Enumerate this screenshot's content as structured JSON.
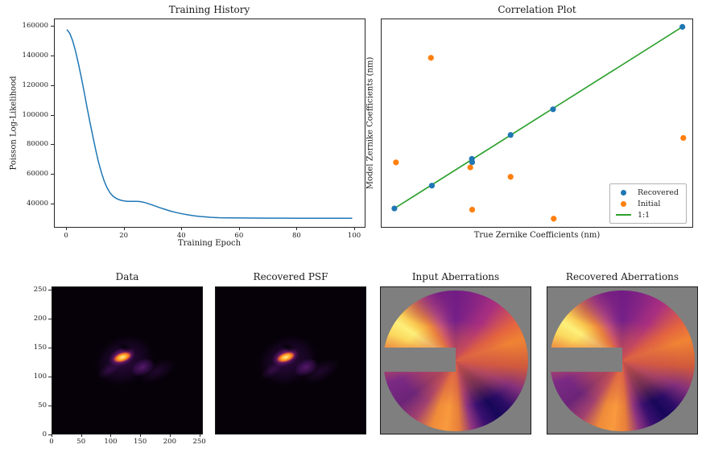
{
  "colors": {
    "recovered_blue": "#1f77b4",
    "initial_orange": "#ff7f0e",
    "identity_green": "#2ca02c",
    "curve_blue": "#1f77b4",
    "panel_gray": "#7f7f7f",
    "psf_background": "#060109"
  },
  "chart_data": [
    {
      "id": "training_history",
      "type": "line",
      "title": "Training History",
      "xlabel": "Training Epoch",
      "ylabel": "Poisson Log-Likelihood",
      "xticks": [
        0,
        20,
        40,
        60,
        80,
        100
      ],
      "yticks": [
        40000,
        60000,
        80000,
        100000,
        120000,
        140000,
        160000
      ],
      "xlim": [
        -4.2,
        103.9
      ],
      "ylim": [
        23750,
        164900
      ],
      "grid": false,
      "series": [
        {
          "name": "poisson-log-likelihood",
          "color": "#1f77b4",
          "points": [
            [
              0,
              158000
            ],
            [
              1,
              155500
            ],
            [
              2,
              150500
            ],
            [
              3,
              143500
            ],
            [
              4,
              135000
            ],
            [
              5,
              126000
            ],
            [
              6,
              116000
            ],
            [
              7,
              105500
            ],
            [
              8,
              95500
            ],
            [
              9,
              86000
            ],
            [
              10,
              77000
            ],
            [
              11,
              68500
            ],
            [
              12,
              61500
            ],
            [
              13,
              55500
            ],
            [
              14,
              51000
            ],
            [
              15,
              47800
            ],
            [
              16,
              45600
            ],
            [
              17,
              44200
            ],
            [
              18,
              43300
            ],
            [
              19,
              42700
            ],
            [
              20,
              42300
            ],
            [
              21,
              42100
            ],
            [
              22,
              42050
            ],
            [
              23,
              42100
            ],
            [
              24,
              42100
            ],
            [
              25,
              42000
            ],
            [
              26,
              41700
            ],
            [
              27,
              41300
            ],
            [
              28,
              40700
            ],
            [
              30,
              39400
            ],
            [
              32,
              38000
            ],
            [
              34,
              36700
            ],
            [
              36,
              35500
            ],
            [
              38,
              34500
            ],
            [
              40,
              33700
            ],
            [
              42,
              33000
            ],
            [
              44,
              32400
            ],
            [
              46,
              31900
            ],
            [
              48,
              31600
            ],
            [
              50,
              31300
            ],
            [
              53,
              31050
            ],
            [
              56,
              30950
            ],
            [
              60,
              30850
            ],
            [
              65,
              30800
            ],
            [
              70,
              30750
            ],
            [
              75,
              30750
            ],
            [
              80,
              30700
            ],
            [
              85,
              30700
            ],
            [
              90,
              30700
            ],
            [
              95,
              30700
            ],
            [
              99,
              30700
            ]
          ]
        }
      ]
    },
    {
      "id": "correlation_plot",
      "type": "scatter",
      "title": "Correlation Plot",
      "xlabel": "True Zernike Coefficients (nm)",
      "ylabel": "Model Zernike Coefficients (nm)",
      "axis_tick_labels": "none shown",
      "units_note": "point coordinates given as fraction of axes (0-1), since axes carry no numeric ticks",
      "series": [
        {
          "name": "Recovered",
          "color": "#1f77b4",
          "points": [
            [
              0.041,
              0.096
            ],
            [
              0.161,
              0.205
            ],
            [
              0.289,
              0.333
            ],
            [
              0.29,
              0.317
            ],
            [
              0.413,
              0.447
            ],
            [
              0.549,
              0.57
            ],
            [
              0.963,
              0.964
            ]
          ]
        },
        {
          "name": "Initial",
          "color": "#ff7f0e",
          "points": [
            [
              0.046,
              0.316
            ],
            [
              0.158,
              0.816
            ],
            [
              0.284,
              0.292
            ],
            [
              0.29,
              0.09
            ],
            [
              0.413,
              0.247
            ],
            [
              0.551,
              0.047
            ],
            [
              0.966,
              0.433
            ]
          ]
        }
      ],
      "identity_line": {
        "name": "1:1",
        "color": "#2ca02c",
        "from": [
          0.041,
          0.096
        ],
        "to": [
          0.963,
          0.964
        ]
      },
      "legend": {
        "position": "lower right",
        "entries": [
          "Recovered",
          "Initial",
          "1:1"
        ]
      }
    },
    {
      "id": "data_image",
      "type": "heatmap",
      "title": "Data",
      "xticks": [
        0,
        50,
        100,
        150,
        200,
        250
      ],
      "yticks": [
        0,
        50,
        100,
        150,
        200,
        250
      ],
      "extent": [
        0,
        256,
        0,
        256
      ],
      "colormap": "inferno-like (black background, yellow-orange PSF core, purple halo)",
      "psf_core_xy": [
        120,
        132
      ]
    },
    {
      "id": "recovered_psf_image",
      "type": "heatmap",
      "title": "Recovered PSF",
      "axis_tick_labels": "none shown",
      "colormap": "inferno-like (black background, yellow-orange PSF core, purple halo)",
      "psf_core_xy": [
        120,
        132
      ]
    },
    {
      "id": "input_aberrations_image",
      "type": "heatmap",
      "title": "Input Aberrations",
      "axis_tick_labels": "none shown",
      "description": "circular pupil phase map on gray background; bright yellow upper-left rim, orange bottom and upper-right rim, dark purple lower-right rim, reddish center; rectangular gray mask from left edge to pupil center"
    },
    {
      "id": "recovered_aberrations_image",
      "type": "heatmap",
      "title": "Recovered Aberrations",
      "axis_tick_labels": "none shown",
      "description": "same pupil phase map as Input Aberrations, recovered by the model"
    }
  ]
}
